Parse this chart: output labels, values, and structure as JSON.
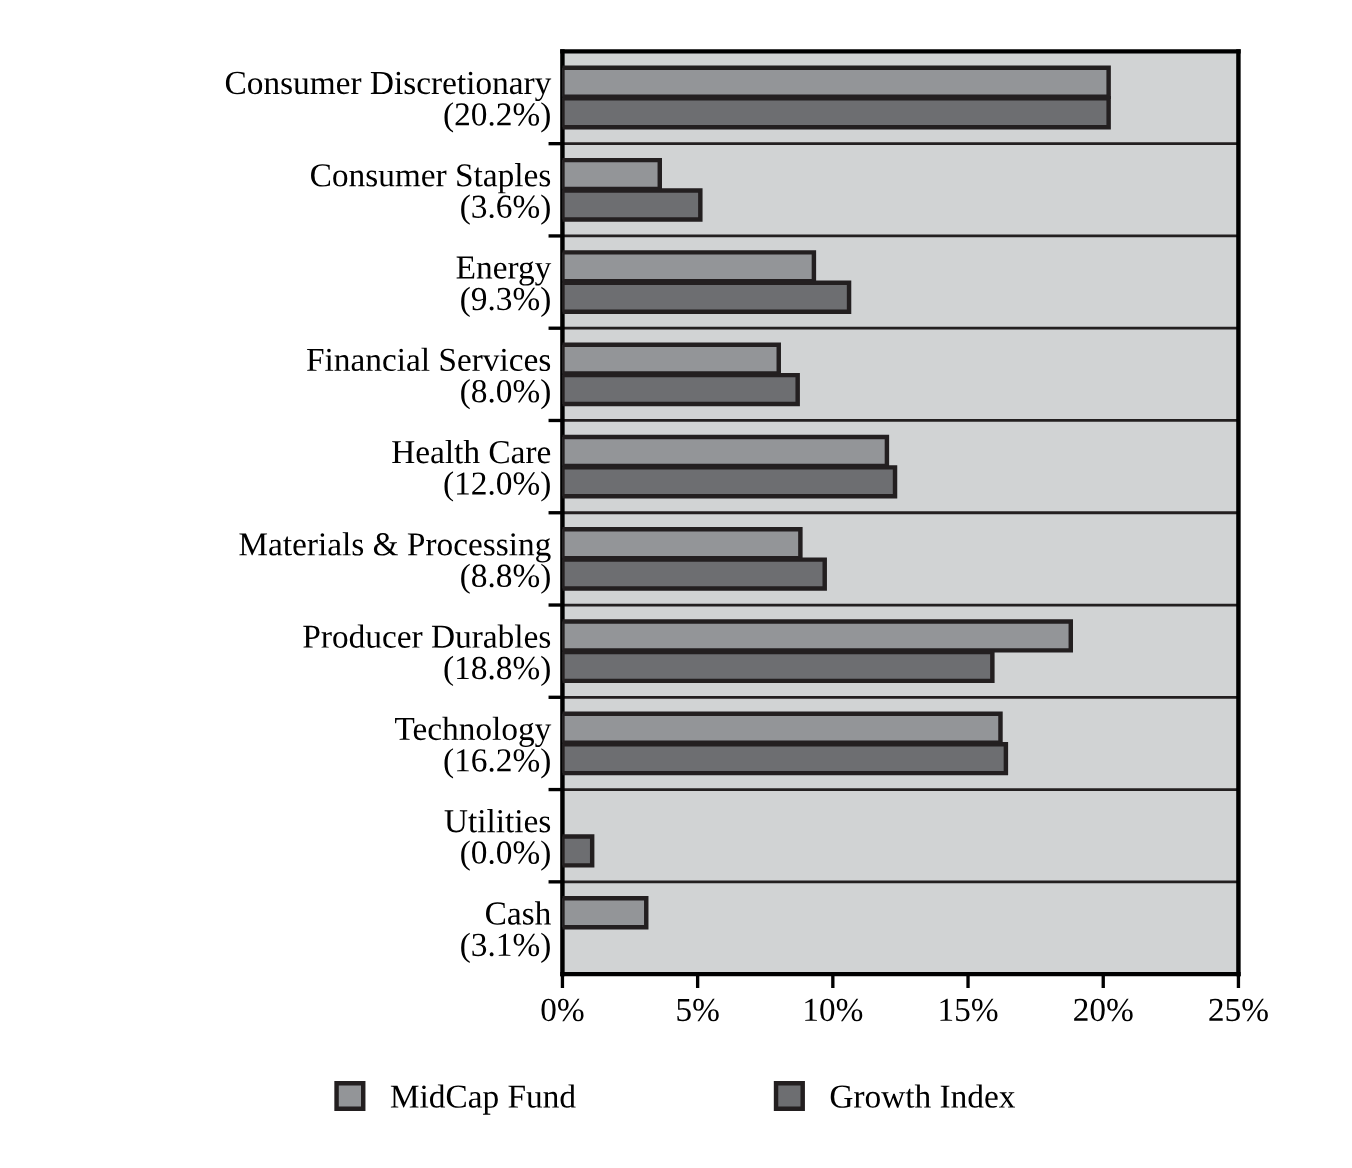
{
  "chart_data": {
    "type": "bar",
    "orientation": "horizontal",
    "categories": [
      "Consumer Discretionary\n(20.2%)",
      "Consumer Staples\n(3.6%)",
      "Energy\n(9.3%)",
      "Financial Services\n(8.0%)",
      "Health Care\n(12.0%)",
      "Materials & Processing\n(8.8%)",
      "Producer Durables\n(18.8%)",
      "Technology\n(16.2%)",
      "Utilities\n(0.0%)",
      "Cash\n(3.1%)"
    ],
    "series": [
      {
        "name": "MidCap Fund",
        "color": "#939598",
        "values": [
          20.2,
          3.6,
          9.3,
          8.0,
          12.0,
          8.8,
          18.8,
          16.2,
          0.0,
          3.1
        ]
      },
      {
        "name": "Growth Index",
        "color": "#6d6e71",
        "values": [
          20.2,
          5.1,
          10.6,
          8.7,
          12.3,
          9.7,
          15.9,
          16.4,
          1.1,
          0.0
        ]
      }
    ],
    "xlim": [
      0,
      25
    ],
    "xticks": [
      {
        "value": 0,
        "label": "0%"
      },
      {
        "value": 5,
        "label": "5%"
      },
      {
        "value": 10,
        "label": "10%"
      },
      {
        "value": 15,
        "label": "15%"
      },
      {
        "value": 20,
        "label": "20%"
      },
      {
        "value": 25,
        "label": "25%"
      }
    ],
    "grid": "y",
    "legend": "bottom"
  }
}
